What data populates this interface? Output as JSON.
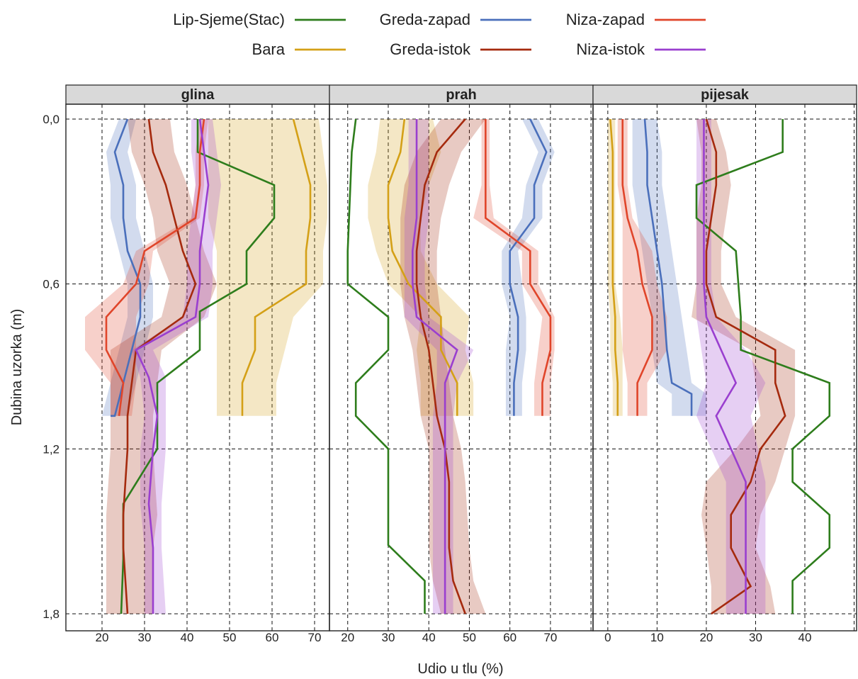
{
  "chart_data": {
    "type": "line",
    "title": "",
    "xlabel": "Udio u tlu (%)",
    "ylabel": "Dubina uzorka (m)",
    "y_range": [
      0.0,
      1.8
    ],
    "y_reversed": true,
    "y_ticks": [
      0.0,
      0.6,
      1.2,
      1.8
    ],
    "y_tick_labels": [
      "0,0",
      "0,6",
      "1,2",
      "1,8"
    ],
    "grid": true,
    "legend_position": "top",
    "panels": [
      {
        "name": "glina",
        "x_range": [
          11.5,
          73.5
        ],
        "x_ticks": [
          20,
          30,
          40,
          50,
          60,
          70
        ],
        "x_tick_labels": [
          "20",
          "30",
          "40",
          "50",
          "60",
          "70"
        ]
      },
      {
        "name": "prah",
        "x_range": [
          15.5,
          80.5
        ],
        "x_ticks": [
          20,
          30,
          40,
          50,
          60,
          70,
          80
        ],
        "x_tick_labels": [
          "20",
          "30",
          "40",
          "50",
          "60",
          "70",
          ""
        ]
      },
      {
        "name": "pijesak",
        "x_range": [
          -3.0,
          50.5
        ],
        "x_ticks": [
          0,
          10,
          20,
          30,
          40,
          50
        ],
        "x_tick_labels": [
          "0",
          "10",
          "20",
          "30",
          "40",
          ""
        ]
      }
    ],
    "series": [
      {
        "name": "Lip-Sjeme(Stac)",
        "color": "#2e7d1c",
        "panels": {
          "glina": {
            "x": [
              42.5,
              42.5,
              60.5,
              60.5,
              54,
              54,
              43,
              43,
              33,
              33,
              33,
              25,
              25,
              24.5
            ],
            "y": [
              0,
              0.12,
              0.24,
              0.36,
              0.48,
              0.6,
              0.7,
              0.84,
              0.96,
              1.08,
              1.2,
              1.4,
              1.6,
              1.8
            ]
          },
          "prah": {
            "x": [
              22,
              21,
              20,
              20,
              30,
              30,
              22,
              22,
              30,
              30,
              39,
              39
            ],
            "y": [
              0,
              0.12,
              0.48,
              0.6,
              0.72,
              0.84,
              0.96,
              1.08,
              1.2,
              1.55,
              1.68,
              1.8
            ]
          },
          "pijesak": {
            "x": [
              35.5,
              35.5,
              18,
              18,
              26,
              27,
              27,
              45,
              45,
              37.5,
              37.5,
              45,
              45,
              37.5,
              37.5
            ],
            "y": [
              0,
              0.12,
              0.24,
              0.36,
              0.48,
              0.72,
              0.84,
              0.96,
              1.08,
              1.2,
              1.32,
              1.44,
              1.56,
              1.68,
              1.8
            ]
          }
        }
      },
      {
        "name": "Bara",
        "color": "#d4a017",
        "bands": true,
        "panels": {
          "glina": {
            "x": [
              65,
              67,
              69,
              69,
              68,
              68,
              56,
              56,
              53,
              53
            ],
            "y": [
              0,
              0.12,
              0.24,
              0.36,
              0.48,
              0.6,
              0.72,
              0.84,
              0.96,
              1.08
            ],
            "lo": [
              45,
              45,
              45,
              45,
              47,
              47,
              47,
              47,
              47,
              47
            ],
            "hi": [
              71,
              72,
              73,
              73,
              72,
              72,
              65,
              63,
              61,
              61
            ]
          },
          "prah": {
            "x": [
              34,
              33,
              30,
              30,
              31,
              35,
              43,
              43,
              47,
              47
            ],
            "y": [
              0,
              0.12,
              0.24,
              0.36,
              0.48,
              0.6,
              0.72,
              0.84,
              0.96,
              1.08
            ],
            "lo": [
              28,
              27,
              25,
              25,
              27,
              30,
              38,
              37,
              38,
              38
            ],
            "hi": [
              41,
              43,
              40,
              38,
              38,
              42,
              50,
              49,
              51,
              51
            ]
          },
          "pijesak": {
            "x": [
              0.5,
              1,
              1,
              1,
              1,
              1,
              1.5,
              1.5,
              2,
              2
            ],
            "y": [
              0,
              0.12,
              0.24,
              0.36,
              0.48,
              0.6,
              0.72,
              0.84,
              0.96,
              1.08
            ],
            "lo": [
              0,
              0,
              0,
              0,
              0,
              0,
              0.5,
              0.5,
              1,
              1
            ],
            "hi": [
              1.5,
              1.5,
              1.5,
              1.5,
              1.5,
              1.5,
              2.5,
              3,
              3,
              3
            ]
          }
        }
      },
      {
        "name": "Greda-zapad",
        "color": "#4a6fbb",
        "bands": true,
        "panels": {
          "glina": {
            "x": [
              26,
              23,
              25,
              25,
              26,
              29,
              29,
              27,
              25,
              23,
              22
            ],
            "y": [
              0,
              0.12,
              0.24,
              0.36,
              0.48,
              0.6,
              0.72,
              0.84,
              0.96,
              1.08,
              1.08
            ],
            "lo": [
              24,
              21,
              22,
              22,
              24,
              26,
              26,
              24,
              22,
              20,
              20
            ],
            "hi": [
              28,
              26,
              28,
              28,
              30,
              32,
              32,
              30,
              28,
              26,
              26
            ]
          },
          "prah": {
            "x": [
              65,
              69,
              66,
              66,
              60,
              60,
              62,
              62,
              61,
              61
            ],
            "y": [
              0,
              0.12,
              0.24,
              0.36,
              0.48,
              0.6,
              0.72,
              0.84,
              0.96,
              1.08
            ],
            "lo": [
              63,
              67,
              64,
              63,
              58,
              58,
              60,
              59,
              59,
              59
            ],
            "hi": [
              67,
              71,
              68,
              68,
              62,
              63,
              64,
              64,
              63,
              63
            ]
          },
          "pijesak": {
            "x": [
              7.5,
              8,
              8,
              9,
              10,
              11,
              11.5,
              12,
              13,
              17,
              17
            ],
            "y": [
              0,
              0.12,
              0.24,
              0.36,
              0.48,
              0.6,
              0.72,
              0.84,
              0.96,
              1.0,
              1.08
            ],
            "lo": [
              5,
              5,
              5,
              6,
              7,
              8,
              9,
              9,
              10,
              13,
              13
            ],
            "hi": [
              10,
              11,
              11,
              12,
              13,
              14,
              15,
              16,
              17,
              20,
              20
            ]
          }
        }
      },
      {
        "name": "Greda-istok",
        "color": "#a52a0e",
        "bands": true,
        "panels": {
          "glina": {
            "x": [
              31,
              32,
              35,
              37,
              39,
              42,
              39,
              28,
              27,
              26,
              26,
              25,
              25,
              26
            ],
            "y": [
              0,
              0.12,
              0.24,
              0.36,
              0.48,
              0.6,
              0.72,
              0.84,
              0.96,
              1.08,
              1.2,
              1.44,
              1.56,
              1.8
            ],
            "lo": [
              26,
              27,
              30,
              32,
              33,
              36,
              34,
              22,
              22,
              22,
              22,
              21,
              21,
              21
            ],
            "hi": [
              36,
              37,
              40,
              42,
              44,
              47,
              44,
              34,
              33,
              32,
              32,
              33,
              32,
              32
            ]
          },
          "prah": {
            "x": [
              49,
              42,
              39,
              38,
              37,
              37,
              38,
              40,
              41,
              42,
              44,
              45,
              45,
              46,
              49
            ],
            "y": [
              0,
              0.12,
              0.24,
              0.36,
              0.48,
              0.6,
              0.72,
              0.84,
              0.96,
              1.08,
              1.2,
              1.32,
              1.56,
              1.68,
              1.8
            ],
            "lo": [
              43,
              37,
              34,
              33,
              33,
              33,
              34,
              36,
              37,
              38,
              40,
              40,
              40,
              41,
              43
            ],
            "hi": [
              54,
              48,
              45,
              43,
              42,
              42,
              43,
              44,
              45,
              46,
              48,
              49,
              50,
              51,
              54
            ]
          },
          "pijesak": {
            "x": [
              20,
              22,
              22,
              21,
              20,
              20,
              22,
              34,
              34,
              36,
              31,
              29,
              25,
              25,
              29,
              21
            ],
            "y": [
              0,
              0.12,
              0.24,
              0.36,
              0.48,
              0.6,
              0.72,
              0.84,
              0.96,
              1.08,
              1.2,
              1.32,
              1.44,
              1.56,
              1.7,
              1.8
            ],
            "lo": [
              18,
              19,
              19,
              18,
              18,
              18,
              17,
              29,
              30,
              31,
              26,
              20,
              19,
              20,
              21,
              21
            ],
            "hi": [
              22,
              24,
              25,
              24,
              23,
              23,
              26,
              38,
              38,
              38,
              36,
              34,
              31,
              30,
              33,
              34
            ]
          }
        }
      },
      {
        "name": "Niza-zapad",
        "color": "#e0452a",
        "bands": true,
        "panels": {
          "glina": {
            "x": [
              44,
              43,
              43,
              42,
              30,
              28,
              21,
              21,
              25,
              24,
              24
            ],
            "y": [
              0,
              0.12,
              0.24,
              0.36,
              0.48,
              0.6,
              0.72,
              0.84,
              0.96,
              1.08,
              1.08
            ],
            "lo": [
              43,
              42,
              42,
              41,
              28,
              25,
              16,
              16,
              22,
              22,
              22
            ],
            "hi": [
              45,
              44,
              44,
              43,
              32,
              31,
              28,
              28,
              28,
              27,
              27
            ]
          },
          "prah": {
            "x": [
              54,
              54,
              54,
              54,
              65,
              65,
              70,
              70,
              68,
              68
            ],
            "y": [
              0,
              0.12,
              0.24,
              0.36,
              0.48,
              0.6,
              0.72,
              0.84,
              0.96,
              1.08
            ],
            "lo": [
              53,
              53,
              53,
              51,
              63,
              63,
              68,
              67,
              66,
              66
            ],
            "hi": [
              55,
              55,
              55,
              56,
              67,
              67,
              71,
              71,
              70,
              70
            ]
          },
          "pijesak": {
            "x": [
              3,
              3,
              3,
              4,
              6,
              7,
              9,
              9,
              6,
              6
            ],
            "y": [
              0,
              0.12,
              0.24,
              0.36,
              0.48,
              0.6,
              0.72,
              0.84,
              0.96,
              1.08
            ],
            "lo": [
              2,
              2,
              2,
              3,
              3,
              3,
              3,
              3,
              4,
              4
            ],
            "hi": [
              4,
              4,
              4,
              5,
              9,
              10,
              12,
              12,
              8,
              8
            ]
          }
        }
      },
      {
        "name": "Niza-istok",
        "color": "#9a3fcf",
        "bands": true,
        "panels": {
          "glina": {
            "x": [
              43,
              44,
              45,
              44,
              43,
              43,
              42,
              28,
              31,
              33,
              32,
              31,
              32,
              32
            ],
            "y": [
              0,
              0.12,
              0.24,
              0.36,
              0.48,
              0.6,
              0.72,
              0.84,
              0.94,
              1.08,
              1.2,
              1.4,
              1.56,
              1.8
            ],
            "lo": [
              41,
              41,
              42,
              41,
              40,
              40,
              39,
              27,
              29,
              30,
              29,
              29,
              30,
              30
            ],
            "hi": [
              46,
              47,
              48,
              47,
              46,
              46,
              45,
              32,
              35,
              35,
              35,
              34,
              34,
              35
            ]
          },
          "prah": {
            "x": [
              37,
              37,
              37,
              37,
              36,
              36,
              37,
              47,
              44,
              44,
              44,
              44,
              44
            ],
            "y": [
              0,
              0.12,
              0.24,
              0.36,
              0.48,
              0.6,
              0.72,
              0.84,
              0.96,
              1.08,
              1.2,
              1.56,
              1.8
            ],
            "lo": [
              35,
              35,
              35,
              34,
              34,
              34,
              34,
              42,
              42,
              41,
              41,
              41,
              41
            ],
            "hi": [
              40,
              40,
              40,
              40,
              39,
              39,
              40,
              51,
              47,
              46,
              46,
              46,
              46
            ]
          },
          "pijesak": {
            "x": [
              19.5,
              19.5,
              19.5,
              19.5,
              19.5,
              19.5,
              20,
              23,
              26,
              22,
              28,
              28,
              28
            ],
            "y": [
              0,
              0.12,
              0.24,
              0.36,
              0.48,
              0.6,
              0.72,
              0.84,
              0.96,
              1.08,
              1.32,
              1.56,
              1.8
            ],
            "lo": [
              18,
              18,
              18,
              18,
              18,
              18,
              18,
              19,
              20,
              18,
              24,
              24,
              24
            ],
            "hi": [
              21,
              21,
              21,
              21,
              21,
              21,
              22,
              28,
              32,
              29,
              32,
              32,
              32
            ]
          }
        }
      }
    ],
    "legend_rows": [
      [
        "Lip-Sjeme(Stac)",
        "Greda-zapad",
        "Niza-zapad"
      ],
      [
        "Bara",
        "Greda-istok",
        "Niza-istok"
      ]
    ]
  }
}
